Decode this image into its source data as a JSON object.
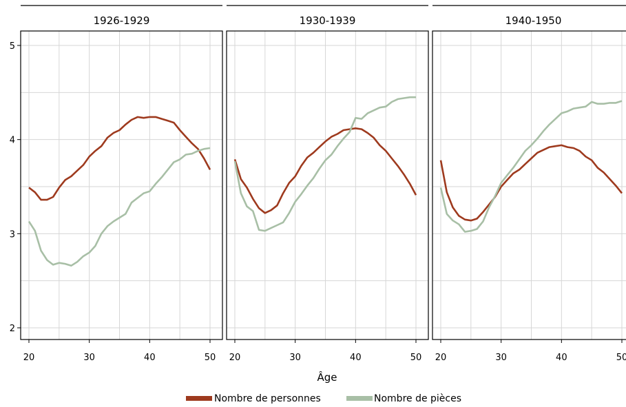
{
  "chart_data": {
    "type": "line",
    "xlabel": "Âge",
    "ylabel": "",
    "xlim": [
      20,
      50
    ],
    "ylim": [
      2,
      5
    ],
    "x_ticks": [
      20,
      30,
      40,
      50
    ],
    "y_ticks": [
      2,
      3,
      4,
      5
    ],
    "grid": true,
    "legend_position": "bottom",
    "colors": {
      "Nombre de personnes": "#9e3a1e",
      "Nombre de pièces": "#a8bfa6"
    },
    "legend": [
      "Nombre de personnes",
      "Nombre de pièces"
    ],
    "facets": [
      {
        "title": "1926-1929",
        "series": [
          {
            "name": "Nombre de personnes",
            "points": [
              [
                20,
                3.49
              ],
              [
                21,
                3.44
              ],
              [
                22,
                3.36
              ],
              [
                23,
                3.36
              ],
              [
                24,
                3.39
              ],
              [
                25,
                3.49
              ],
              [
                26,
                3.57
              ],
              [
                27,
                3.61
              ],
              [
                28,
                3.67
              ],
              [
                29,
                3.73
              ],
              [
                30,
                3.82
              ],
              [
                31,
                3.88
              ],
              [
                32,
                3.93
              ],
              [
                33,
                4.02
              ],
              [
                34,
                4.07
              ],
              [
                35,
                4.1
              ],
              [
                36,
                4.16
              ],
              [
                37,
                4.21
              ],
              [
                38,
                4.24
              ],
              [
                39,
                4.23
              ],
              [
                40,
                4.24
              ],
              [
                41,
                4.24
              ],
              [
                42,
                4.22
              ],
              [
                43,
                4.2
              ],
              [
                44,
                4.18
              ],
              [
                45,
                4.1
              ],
              [
                46,
                4.03
              ],
              [
                47,
                3.96
              ],
              [
                48,
                3.9
              ],
              [
                49,
                3.8
              ],
              [
                50,
                3.68
              ]
            ]
          },
          {
            "name": "Nombre de pièces",
            "points": [
              [
                20,
                3.13
              ],
              [
                21,
                3.03
              ],
              [
                22,
                2.82
              ],
              [
                23,
                2.72
              ],
              [
                24,
                2.67
              ],
              [
                25,
                2.69
              ],
              [
                26,
                2.68
              ],
              [
                27,
                2.66
              ],
              [
                28,
                2.7
              ],
              [
                29,
                2.76
              ],
              [
                30,
                2.8
              ],
              [
                31,
                2.87
              ],
              [
                32,
                3.0
              ],
              [
                33,
                3.08
              ],
              [
                34,
                3.13
              ],
              [
                35,
                3.17
              ],
              [
                36,
                3.21
              ],
              [
                37,
                3.33
              ],
              [
                38,
                3.38
              ],
              [
                39,
                3.43
              ],
              [
                40,
                3.45
              ],
              [
                41,
                3.53
              ],
              [
                42,
                3.6
              ],
              [
                43,
                3.68
              ],
              [
                44,
                3.76
              ],
              [
                45,
                3.79
              ],
              [
                46,
                3.84
              ],
              [
                47,
                3.85
              ],
              [
                48,
                3.88
              ],
              [
                49,
                3.9
              ],
              [
                50,
                3.91
              ]
            ]
          }
        ]
      },
      {
        "title": "1930-1939",
        "series": [
          {
            "name": "Nombre de personnes",
            "points": [
              [
                20,
                3.79
              ],
              [
                21,
                3.58
              ],
              [
                22,
                3.49
              ],
              [
                23,
                3.37
              ],
              [
                24,
                3.27
              ],
              [
                25,
                3.22
              ],
              [
                26,
                3.25
              ],
              [
                27,
                3.3
              ],
              [
                28,
                3.43
              ],
              [
                29,
                3.54
              ],
              [
                30,
                3.61
              ],
              [
                31,
                3.72
              ],
              [
                32,
                3.81
              ],
              [
                33,
                3.86
              ],
              [
                34,
                3.92
              ],
              [
                35,
                3.98
              ],
              [
                36,
                4.03
              ],
              [
                37,
                4.06
              ],
              [
                38,
                4.1
              ],
              [
                39,
                4.11
              ],
              [
                40,
                4.12
              ],
              [
                41,
                4.11
              ],
              [
                42,
                4.07
              ],
              [
                43,
                4.02
              ],
              [
                44,
                3.94
              ],
              [
                45,
                3.88
              ],
              [
                46,
                3.8
              ],
              [
                47,
                3.72
              ],
              [
                48,
                3.63
              ],
              [
                49,
                3.53
              ],
              [
                50,
                3.41
              ]
            ]
          },
          {
            "name": "Nombre de pièces",
            "points": [
              [
                20,
                3.77
              ],
              [
                21,
                3.43
              ],
              [
                22,
                3.29
              ],
              [
                23,
                3.24
              ],
              [
                24,
                3.04
              ],
              [
                25,
                3.03
              ],
              [
                26,
                3.06
              ],
              [
                27,
                3.09
              ],
              [
                28,
                3.12
              ],
              [
                29,
                3.22
              ],
              [
                30,
                3.34
              ],
              [
                31,
                3.42
              ],
              [
                32,
                3.51
              ],
              [
                33,
                3.59
              ],
              [
                34,
                3.69
              ],
              [
                35,
                3.78
              ],
              [
                36,
                3.84
              ],
              [
                37,
                3.93
              ],
              [
                38,
                4.01
              ],
              [
                39,
                4.08
              ],
              [
                40,
                4.23
              ],
              [
                41,
                4.22
              ],
              [
                42,
                4.28
              ],
              [
                43,
                4.31
              ],
              [
                44,
                4.34
              ],
              [
                45,
                4.35
              ],
              [
                46,
                4.4
              ],
              [
                47,
                4.43
              ],
              [
                48,
                4.44
              ],
              [
                49,
                4.45
              ],
              [
                50,
                4.45
              ]
            ]
          }
        ]
      },
      {
        "title": "1940-1950",
        "series": [
          {
            "name": "Nombre de personnes",
            "points": [
              [
                20,
                3.78
              ],
              [
                21,
                3.44
              ],
              [
                22,
                3.28
              ],
              [
                23,
                3.19
              ],
              [
                24,
                3.15
              ],
              [
                25,
                3.14
              ],
              [
                26,
                3.16
              ],
              [
                27,
                3.23
              ],
              [
                28,
                3.31
              ],
              [
                29,
                3.39
              ],
              [
                30,
                3.5
              ],
              [
                31,
                3.57
              ],
              [
                32,
                3.64
              ],
              [
                33,
                3.68
              ],
              [
                34,
                3.74
              ],
              [
                35,
                3.8
              ],
              [
                36,
                3.86
              ],
              [
                37,
                3.89
              ],
              [
                38,
                3.92
              ],
              [
                39,
                3.93
              ],
              [
                40,
                3.94
              ],
              [
                41,
                3.92
              ],
              [
                42,
                3.91
              ],
              [
                43,
                3.88
              ],
              [
                44,
                3.82
              ],
              [
                45,
                3.78
              ],
              [
                46,
                3.7
              ],
              [
                47,
                3.65
              ],
              [
                48,
                3.58
              ],
              [
                49,
                3.51
              ],
              [
                50,
                3.43
              ]
            ]
          },
          {
            "name": "Nombre de pièces",
            "points": [
              [
                20,
                3.49
              ],
              [
                21,
                3.21
              ],
              [
                22,
                3.14
              ],
              [
                23,
                3.1
              ],
              [
                24,
                3.02
              ],
              [
                25,
                3.03
              ],
              [
                26,
                3.05
              ],
              [
                27,
                3.13
              ],
              [
                28,
                3.28
              ],
              [
                29,
                3.4
              ],
              [
                30,
                3.54
              ],
              [
                31,
                3.62
              ],
              [
                32,
                3.7
              ],
              [
                33,
                3.79
              ],
              [
                34,
                3.88
              ],
              [
                35,
                3.94
              ],
              [
                36,
                4.01
              ],
              [
                37,
                4.09
              ],
              [
                38,
                4.16
              ],
              [
                39,
                4.22
              ],
              [
                40,
                4.28
              ],
              [
                41,
                4.3
              ],
              [
                42,
                4.33
              ],
              [
                43,
                4.34
              ],
              [
                44,
                4.35
              ],
              [
                45,
                4.4
              ],
              [
                46,
                4.38
              ],
              [
                47,
                4.38
              ],
              [
                48,
                4.39
              ],
              [
                49,
                4.39
              ],
              [
                50,
                4.41
              ]
            ]
          }
        ]
      }
    ]
  }
}
